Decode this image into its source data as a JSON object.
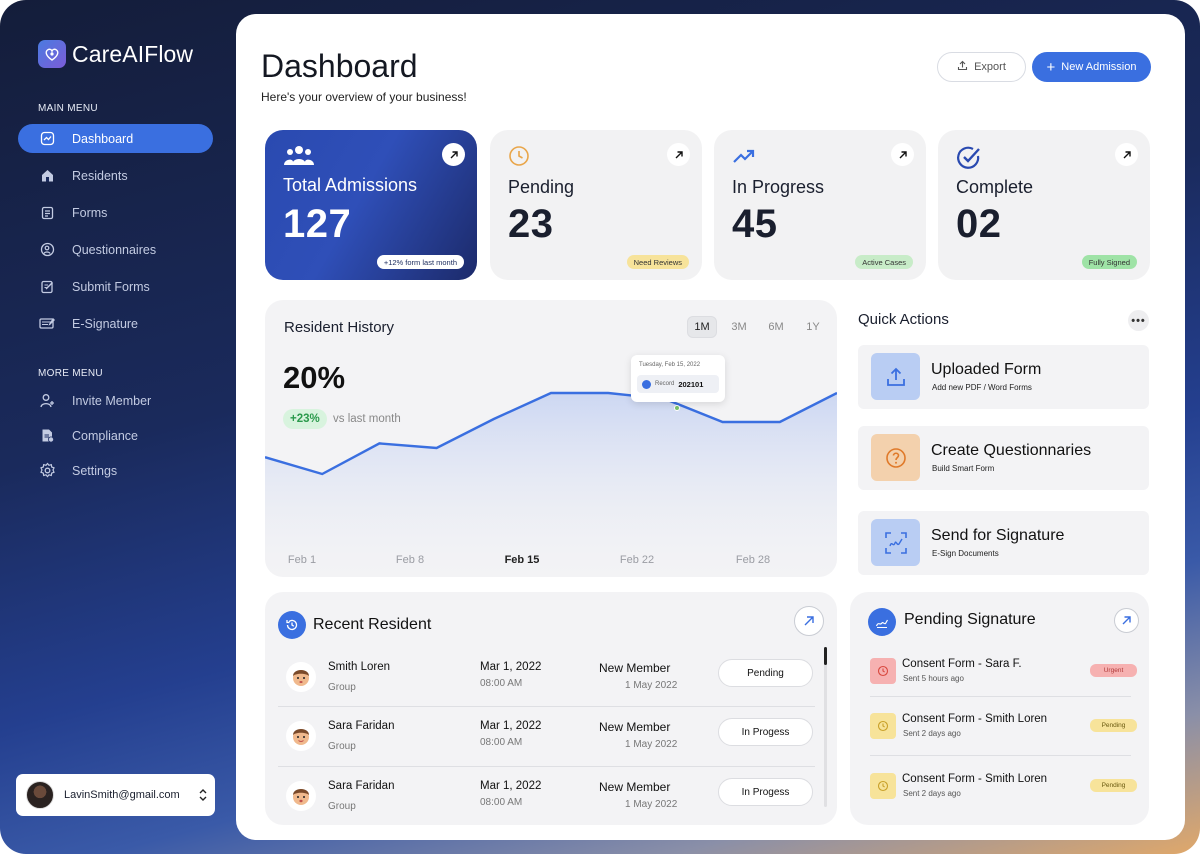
{
  "app": {
    "name": "CareAIFlow"
  },
  "sidebar": {
    "main_menu_heading": "MAIN MENU",
    "main_items": [
      {
        "label": "Dashboard",
        "icon": "chart-icon",
        "active": true
      },
      {
        "label": "Residents",
        "icon": "house-icon",
        "active": false
      },
      {
        "label": "Forms",
        "icon": "clipboard-icon",
        "active": false
      },
      {
        "label": "Questionnaires",
        "icon": "person-question-icon",
        "active": false
      },
      {
        "label": "Submit Forms",
        "icon": "edit-document-icon",
        "active": false
      },
      {
        "label": "E-Signature",
        "icon": "signature-card-icon",
        "active": false
      }
    ],
    "more_menu_heading": "MORE MENU",
    "more_items": [
      {
        "label": "Invite Member",
        "icon": "add-user-icon"
      },
      {
        "label": "Compliance",
        "icon": "document-check-icon"
      },
      {
        "label": "Settings",
        "icon": "gear-icon"
      }
    ],
    "user": {
      "email": "LavinSmith@gmail.com"
    }
  },
  "header": {
    "title": "Dashboard",
    "subtitle": "Here's your overview of your business!",
    "export_label": "Export",
    "new_admission_label": "New Admission"
  },
  "stats": [
    {
      "label": "Total Admissions",
      "value": "127",
      "badge": "+12% form last month",
      "icon": "group-icon"
    },
    {
      "label": "Pending",
      "value": "23",
      "badge": "Need Reviews",
      "icon": "clock-icon",
      "badge_color": "#f7e39a"
    },
    {
      "label": "In Progress",
      "value": "45",
      "badge": "Active Cases",
      "icon": "trend-up-icon",
      "badge_color": "#c8ecc8"
    },
    {
      "label": "Complete",
      "value": "02",
      "badge": "Fully Signed",
      "icon": "check-circle-icon",
      "badge_color": "#9fe3a6"
    }
  ],
  "history": {
    "title": "Resident History",
    "ranges": [
      "1M",
      "3M",
      "6M",
      "1Y"
    ],
    "active_range": "1M",
    "value": "20%",
    "delta": "+23%",
    "delta_note": "vs last month",
    "tooltip": {
      "date": "Tuesday, Feb 15, 2022",
      "label": "Record",
      "value": "202101"
    }
  },
  "chart_data": {
    "type": "area",
    "x": [
      "Feb 1",
      "Feb 8",
      "Feb 15",
      "Feb 22",
      "Feb 28"
    ],
    "highlight_x": "Feb 15",
    "points_relative": [
      0.58,
      0.47,
      0.67,
      0.64,
      0.83,
      1.0,
      1.0,
      0.96,
      0.81,
      0.81,
      1.0
    ],
    "color": "#3a6fe0"
  },
  "quick_actions": {
    "title": "Quick Actions",
    "items": [
      {
        "title": "Uploaded Form",
        "subtitle": "Add new PDF / Word Forms",
        "icon": "upload-icon",
        "bg": "#b9cdf3"
      },
      {
        "title": "Create Questionnaries",
        "subtitle": "Build Smart Form",
        "icon": "question-circle-icon",
        "bg": "#f3d1ad"
      },
      {
        "title": "Send for Signature",
        "subtitle": "E-Sign Documents",
        "icon": "signature-scan-icon",
        "bg": "#b9cdf3"
      }
    ]
  },
  "recent_resident": {
    "title": "Recent Resident",
    "rows": [
      {
        "name": "Smith Loren",
        "group": "Group",
        "date": "Mar 1, 2022",
        "time": "08:00 AM",
        "type": "New Member",
        "joined": "1 May 2022",
        "status": "Pending"
      },
      {
        "name": "Sara Faridan",
        "group": "Group",
        "date": "Mar 1, 2022",
        "time": "08:00 AM",
        "type": "New Member",
        "joined": "1 May 2022",
        "status": "In Progess"
      },
      {
        "name": "Sara Faridan",
        "group": "Group",
        "date": "Mar 1, 2022",
        "time": "08:00 AM",
        "type": "New Member",
        "joined": "1 May 2022",
        "status": "In Progess"
      }
    ]
  },
  "pending_signature": {
    "title": "Pending Signature",
    "items": [
      {
        "title": "Consent Form - Sara F.",
        "sub": "Sent 5 hours ago",
        "badge": "Urgent",
        "badge_color": "#f6b1b1",
        "icon_bg": "#f6b1b1"
      },
      {
        "title": "Consent Form - Smith Loren",
        "sub": "Sent 2 days ago",
        "badge": "Pending",
        "badge_color": "#f7e39a",
        "icon_bg": "#f7e39a"
      },
      {
        "title": "Consent Form - Smith Loren",
        "sub": "Sent 2 days ago",
        "badge": "Pending",
        "badge_color": "#f7e39a",
        "icon_bg": "#f7e39a"
      }
    ]
  },
  "colors": {
    "accent": "#3a6fe0",
    "card_bg": "#f3f3f5"
  }
}
